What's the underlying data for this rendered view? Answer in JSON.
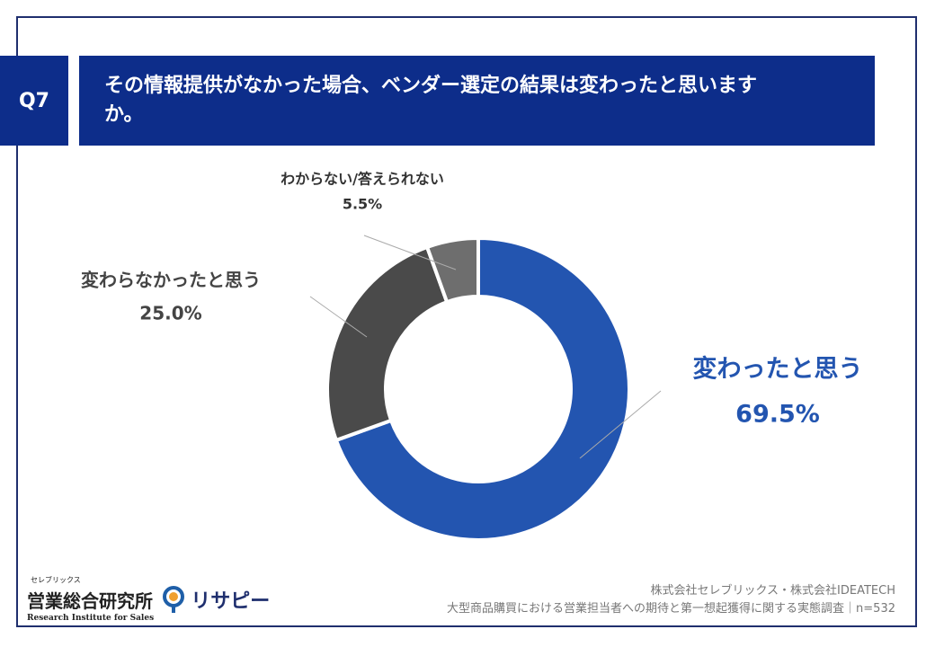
{
  "question_label": "Q7",
  "chart_data": {
    "type": "donut",
    "title": "その情報提供がなかった場合、ベンダー選定の結果は変わったと思いますか。",
    "categories": [
      "変わったと思う",
      "変わらなかったと思う",
      "わからない/答えられない"
    ],
    "values": [
      69.5,
      25.0,
      5.5
    ],
    "value_labels": [
      "69.5%",
      "25.0%",
      "5.5%"
    ],
    "colors": [
      "#2355b0",
      "#4a4a4a",
      "#6e6e6e"
    ]
  },
  "footer": {
    "company": "株式会社セレブリックス・株式会社IDEATECH",
    "survey": "大型商品購買における営業担当者への期待と第一想起獲得に関する実態調査｜n=532"
  },
  "logo": {
    "kana": "セレブリックス",
    "name": "営業総合研究所",
    "english": "Research Institute for Sales",
    "brand": "リサピー"
  }
}
